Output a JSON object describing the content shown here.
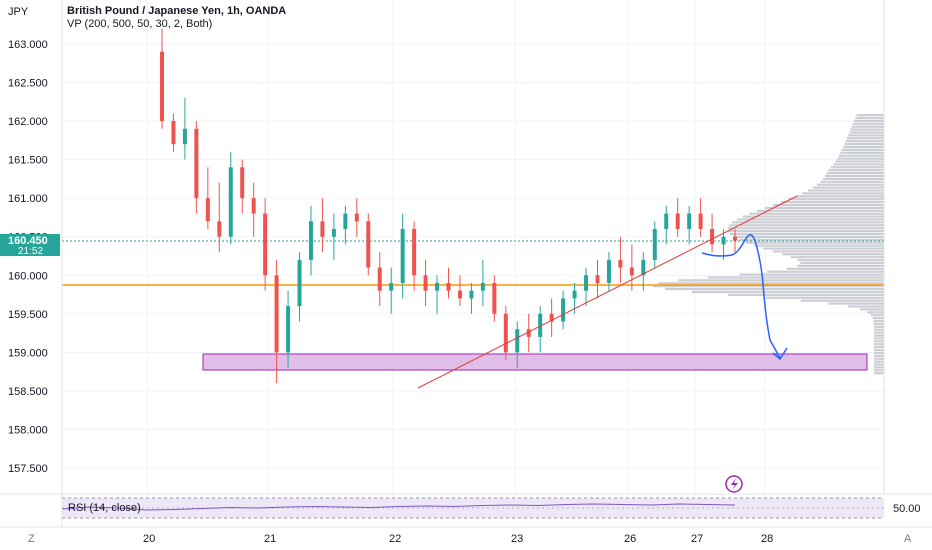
{
  "header": {
    "currency": "JPY",
    "symbol_title": "British Pound / Japanese Yen, 1h, OANDA",
    "indicator_vp": "VP (200, 500, 50, 30, 2, Both)"
  },
  "price_badge": {
    "price": "160.450",
    "countdown": "21:52"
  },
  "rsi": {
    "label": "RSI (14, close)",
    "level_label": "50.00"
  },
  "corner": {
    "left": "Z",
    "right": "A"
  },
  "lightning_icon": "lightning-icon",
  "colors": {
    "up": "#26a69a",
    "down": "#ef5350",
    "support_line": "#ff9800",
    "zone_fill": "#e1bee7",
    "zone_border": "#9c27b0",
    "trendline": "#e53935",
    "drawing": "#2962ff",
    "volume_profile": "#b2b5be",
    "rsi_line": "#7e57c2",
    "price_badge": "#26a69a"
  },
  "chart_data": {
    "type": "candlestick",
    "title": "British Pound / Japanese Yen, 1h, OANDA",
    "y_ticks": [
      "163.000",
      "162.500",
      "162.000",
      "161.500",
      "161.000",
      "160.500",
      "160.000",
      "159.500",
      "159.000",
      "158.500",
      "158.000",
      "157.500"
    ],
    "ylim": [
      157.0,
      163.3
    ],
    "x_ticks": [
      "20",
      "21",
      "22",
      "23",
      "26",
      "27",
      "28"
    ],
    "last_price": 160.45,
    "horizontal_line": 159.87,
    "support_zone": [
      158.8,
      159.0
    ],
    "trendline": {
      "from": [
        "22",
        158.55
      ],
      "to": [
        "28",
        161.05
      ]
    },
    "projected_path": [
      160.45,
      160.5,
      160.3,
      159.6,
      158.95
    ],
    "candle_ohlc": [
      [
        162.9,
        163.2,
        161.9,
        162.0
      ],
      [
        162.0,
        162.1,
        161.6,
        161.7
      ],
      [
        161.7,
        162.3,
        161.5,
        161.9
      ],
      [
        161.9,
        162.0,
        160.8,
        161.0
      ],
      [
        161.0,
        161.4,
        160.6,
        160.7
      ],
      [
        160.7,
        161.2,
        160.3,
        160.5
      ],
      [
        160.5,
        161.6,
        160.4,
        161.4
      ],
      [
        161.4,
        161.5,
        160.8,
        161.0
      ],
      [
        161.0,
        161.2,
        160.5,
        160.8
      ],
      [
        160.8,
        161.0,
        159.8,
        160.0
      ],
      [
        160.0,
        160.2,
        158.6,
        159.0
      ],
      [
        159.0,
        159.8,
        158.8,
        159.6
      ],
      [
        159.6,
        160.3,
        159.4,
        160.2
      ],
      [
        160.2,
        160.9,
        160.0,
        160.7
      ],
      [
        160.7,
        161.0,
        160.3,
        160.5
      ],
      [
        160.5,
        160.8,
        160.2,
        160.6
      ],
      [
        160.6,
        160.9,
        160.4,
        160.8
      ],
      [
        160.8,
        161.0,
        160.5,
        160.7
      ],
      [
        160.7,
        160.8,
        160.0,
        160.1
      ],
      [
        160.1,
        160.3,
        159.6,
        159.8
      ],
      [
        159.8,
        160.1,
        159.5,
        159.9
      ],
      [
        159.9,
        160.8,
        159.7,
        160.6
      ],
      [
        160.6,
        160.7,
        159.8,
        160.0
      ],
      [
        160.0,
        160.2,
        159.6,
        159.8
      ],
      [
        159.8,
        160.0,
        159.5,
        159.9
      ],
      [
        159.9,
        160.1,
        159.7,
        159.8
      ],
      [
        159.8,
        160.0,
        159.6,
        159.7
      ],
      [
        159.7,
        159.9,
        159.5,
        159.8
      ],
      [
        159.8,
        160.2,
        159.6,
        159.9
      ],
      [
        159.9,
        160.0,
        159.4,
        159.5
      ],
      [
        159.5,
        159.6,
        158.9,
        159.0
      ],
      [
        159.0,
        159.4,
        158.8,
        159.3
      ],
      [
        159.3,
        159.5,
        159.0,
        159.2
      ],
      [
        159.2,
        159.6,
        159.0,
        159.5
      ],
      [
        159.5,
        159.7,
        159.2,
        159.4
      ],
      [
        159.4,
        159.8,
        159.3,
        159.7
      ],
      [
        159.7,
        159.9,
        159.5,
        159.8
      ],
      [
        159.8,
        160.1,
        159.6,
        160.0
      ],
      [
        160.0,
        160.2,
        159.7,
        159.9
      ],
      [
        159.9,
        160.3,
        159.8,
        160.2
      ],
      [
        160.2,
        160.5,
        159.9,
        160.1
      ],
      [
        160.1,
        160.4,
        159.8,
        160.0
      ],
      [
        160.0,
        160.3,
        159.8,
        160.2
      ],
      [
        160.2,
        160.7,
        160.1,
        160.6
      ],
      [
        160.6,
        160.9,
        160.4,
        160.8
      ],
      [
        160.8,
        161.0,
        160.5,
        160.6
      ],
      [
        160.6,
        160.9,
        160.4,
        160.8
      ],
      [
        160.8,
        161.0,
        160.5,
        160.6
      ],
      [
        160.6,
        160.8,
        160.3,
        160.4
      ],
      [
        160.4,
        160.6,
        160.2,
        160.5
      ],
      [
        160.5,
        160.6,
        160.3,
        160.45
      ]
    ],
    "rsi_values": [
      48,
      52,
      50,
      46,
      47,
      49,
      51,
      50,
      52,
      53,
      52,
      51,
      53,
      54,
      53,
      55,
      56,
      55,
      57,
      58,
      57,
      56,
      58,
      57,
      56
    ]
  }
}
